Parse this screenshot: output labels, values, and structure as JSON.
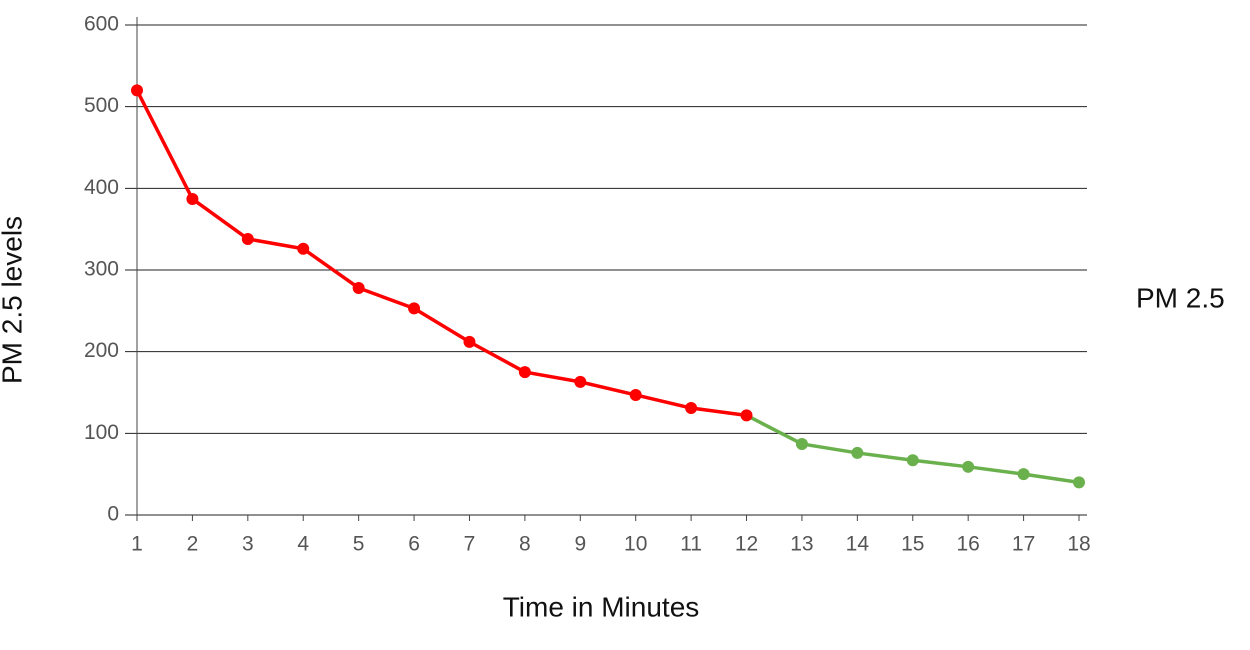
{
  "chart_data": {
    "type": "line",
    "x_label": "Time in Minutes",
    "y_label": "PM 2.5 levels",
    "x": [
      1,
      2,
      3,
      4,
      5,
      6,
      7,
      8,
      9,
      10,
      11,
      12,
      13,
      14,
      15,
      16,
      17,
      18
    ],
    "xlim": [
      1,
      18
    ],
    "xticks": [
      1,
      2,
      3,
      4,
      5,
      6,
      7,
      8,
      9,
      10,
      11,
      12,
      13,
      14,
      15,
      16,
      17,
      18
    ],
    "ylim": [
      0,
      600
    ],
    "yticks": [
      0,
      100,
      200,
      300,
      400,
      500,
      600
    ],
    "grid": true,
    "legend": "right",
    "series": [
      {
        "name": "PM 2.5",
        "values": [
          520,
          387,
          338,
          326,
          278,
          253,
          212,
          175,
          163,
          147,
          131,
          122,
          87,
          76,
          67,
          59,
          50,
          40
        ],
        "colors": [
          "#ff0000",
          "#ff0000",
          "#ff0000",
          "#ff0000",
          "#ff0000",
          "#ff0000",
          "#ff0000",
          "#ff0000",
          "#ff0000",
          "#ff0000",
          "#ff0000",
          "#ff0000",
          "#6ab04c",
          "#6ab04c",
          "#6ab04c",
          "#6ab04c",
          "#6ab04c",
          "#6ab04c"
        ]
      }
    ]
  }
}
